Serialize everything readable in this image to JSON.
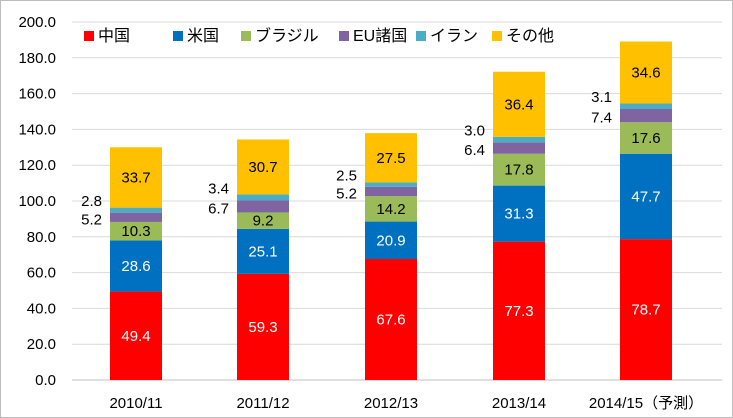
{
  "chart_data": {
    "type": "bar",
    "stacked": true,
    "categories": [
      "2010/11",
      "2011/12",
      "2012/13",
      "2013/14",
      "2014/15（予測）"
    ],
    "series": [
      {
        "name": "中国",
        "color": "#ff0000",
        "label_color": "#ffffff",
        "values": [
          49.4,
          59.3,
          67.6,
          77.3,
          78.7
        ]
      },
      {
        "name": "米国",
        "color": "#0070c0",
        "label_color": "#ffffff",
        "values": [
          28.6,
          25.1,
          20.9,
          31.3,
          47.7
        ]
      },
      {
        "name": "ブラジル",
        "color": "#9bbb59",
        "label_color": "#000000",
        "values": [
          10.3,
          9.2,
          14.2,
          17.8,
          17.6
        ]
      },
      {
        "name": "EU諸国",
        "color": "#8064a2",
        "label_color": "#000000",
        "values": [
          5.2,
          6.7,
          5.2,
          6.4,
          7.4
        ]
      },
      {
        "name": "イラン",
        "color": "#4bacc6",
        "label_color": "#000000",
        "values": [
          2.8,
          3.4,
          2.5,
          3.0,
          3.1
        ]
      },
      {
        "name": "その他",
        "color": "#ffc000",
        "label_color": "#000000",
        "values": [
          33.7,
          30.7,
          27.5,
          36.4,
          34.6
        ]
      }
    ],
    "yticks": [
      "0.0",
      "20.0",
      "40.0",
      "60.0",
      "80.0",
      "100.0",
      "120.0",
      "140.0",
      "160.0",
      "180.0",
      "200.0"
    ],
    "ylim": [
      0,
      200
    ],
    "legend_position": "top",
    "grid": true
  }
}
